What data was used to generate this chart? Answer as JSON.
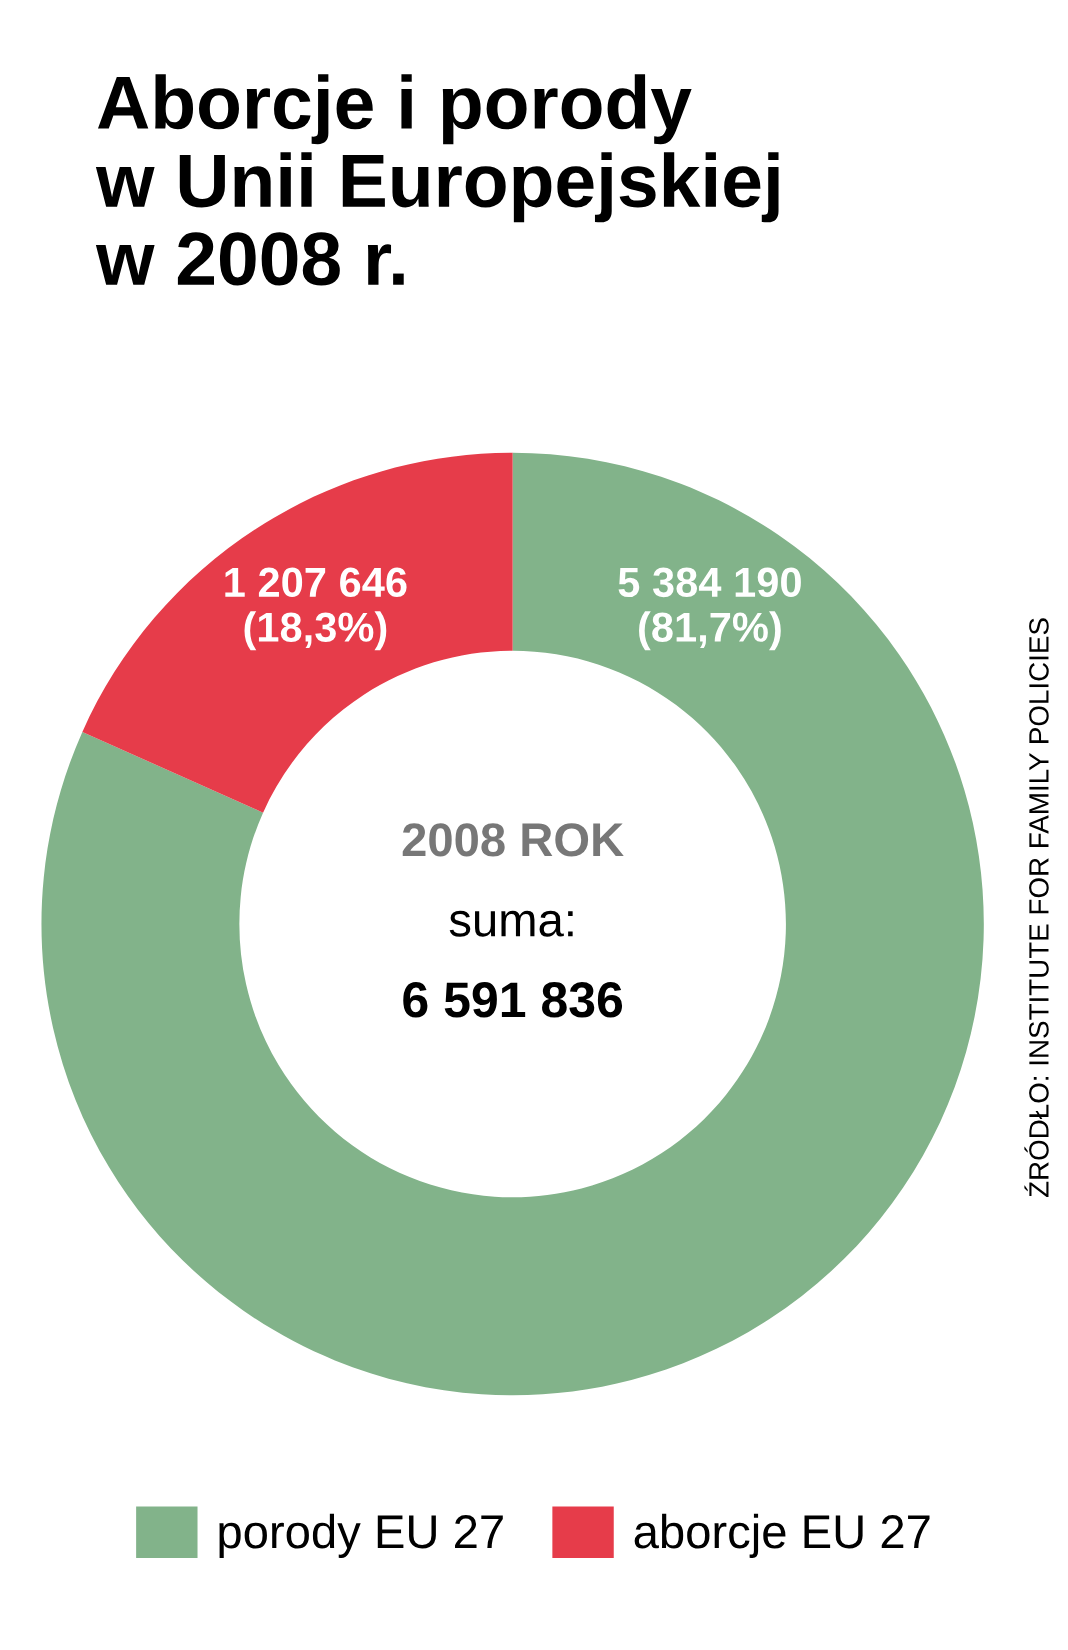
{
  "chart_data": {
    "type": "donut",
    "title": "Aborcje i porody\nw Unii Europejskiej\nw 2008 r.",
    "categories": [
      "porody EU 27",
      "aborcje EU 27"
    ],
    "values": [
      5384190,
      1207646
    ],
    "colors": [
      "#82b38a",
      "#e63c4a"
    ],
    "value_labels": [
      "5 384 190\n(81,7%)",
      "1 207 646\n(18,3%)"
    ],
    "annotations": [
      "2008 ROK",
      "suma:",
      "6 591 836",
      "ŹRÓDŁO: INSTITUTE FOR FAMILY POLICIES"
    ],
    "legend": "bottom"
  }
}
